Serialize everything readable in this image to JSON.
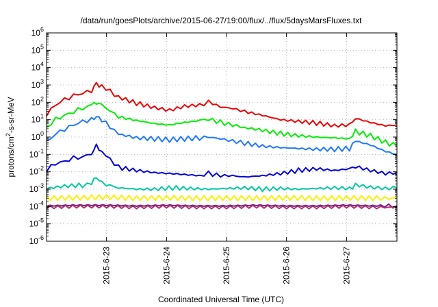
{
  "chart_data": {
    "type": "line",
    "title": "/data/run/goesPlots/archive/2015-06-27/19:00/flux/../flux/5daysMarsFluxes.txt",
    "xlabel": "Coordinated Universal Time (UTC)",
    "ylabel_prefix": "protons/cm",
    "ylabel_sup": "2",
    "ylabel_suffix": "-s-sr-MeV",
    "yscale": "log",
    "ylim_exponents": [
      -6,
      6
    ],
    "y_tick_labels": [
      {
        "base": "10",
        "exp": "6"
      },
      {
        "base": "10",
        "exp": "5"
      },
      {
        "base": "10",
        "exp": "4"
      },
      {
        "base": "10",
        "exp": "3"
      },
      {
        "base": "10",
        "exp": "2"
      },
      {
        "base": "10",
        "exp": "1"
      },
      {
        "base": "10",
        "exp": "0"
      },
      {
        "base": "10",
        "exp": "-1"
      },
      {
        "base": "10",
        "exp": "-2"
      },
      {
        "base": "10",
        "exp": "-3"
      },
      {
        "base": "10",
        "exp": "-4"
      },
      {
        "base": "10",
        "exp": "-5"
      },
      {
        "base": "10",
        "exp": "-6"
      }
    ],
    "xlim_days": [
      22.0,
      27.84
    ],
    "x_ticks": [
      {
        "label": "2015-6-23",
        "day": 23
      },
      {
        "label": "2015-6-24",
        "day": 24
      },
      {
        "label": "2015-6-25",
        "day": 25
      },
      {
        "label": "2015-6-26",
        "day": 26
      },
      {
        "label": "2015-6-27",
        "day": 27
      }
    ],
    "grid": true,
    "series": [
      {
        "color": "#ee0000",
        "x": [
          22.0,
          22.15,
          22.3,
          22.45,
          22.6,
          22.75,
          22.83,
          22.92,
          23.2,
          23.5,
          23.8,
          24.05,
          24.3,
          24.55,
          24.7,
          24.9,
          25.1,
          25.3,
          25.6,
          25.9,
          26.2,
          26.5,
          26.8,
          27.05,
          27.15,
          27.4,
          27.65,
          27.84
        ],
        "y": [
          22,
          70,
          150,
          250,
          330,
          500,
          1200,
          900,
          200,
          90,
          50,
          35,
          60,
          70,
          110,
          55,
          45,
          30,
          18,
          10,
          8,
          6.5,
          4.5,
          5,
          12,
          7,
          4.5,
          5
        ]
      },
      {
        "color": "#00ee00",
        "x": [
          22.0,
          22.15,
          22.3,
          22.45,
          22.6,
          22.75,
          22.83,
          22.92,
          23.2,
          23.5,
          23.8,
          24.05,
          24.3,
          24.55,
          24.7,
          24.9,
          25.1,
          25.3,
          25.6,
          25.9,
          26.2,
          26.5,
          26.8,
          27.05,
          27.15,
          27.4,
          27.65,
          27.84
        ],
        "y": [
          3.5,
          10,
          18,
          28,
          45,
          70,
          100,
          70,
          15,
          9,
          6,
          5,
          7,
          9,
          11,
          7,
          5,
          3.5,
          2.5,
          1.6,
          1.2,
          1,
          0.9,
          0.8,
          2.1,
          1.2,
          0.5,
          0.3
        ]
      },
      {
        "color": "#1e78ff",
        "x": [
          22.0,
          22.15,
          22.3,
          22.45,
          22.6,
          22.75,
          22.83,
          22.92,
          23.2,
          23.5,
          23.8,
          24.05,
          24.3,
          24.55,
          24.7,
          24.9,
          25.1,
          25.3,
          25.6,
          25.9,
          26.2,
          26.5,
          26.8,
          27.05,
          27.15,
          27.4,
          27.65,
          27.84
        ],
        "y": [
          0.5,
          1.5,
          3,
          5,
          8,
          11,
          15,
          10,
          1.5,
          0.9,
          0.8,
          0.7,
          0.8,
          0.9,
          1,
          0.8,
          0.6,
          0.45,
          0.3,
          0.25,
          0.22,
          0.2,
          0.2,
          0.22,
          0.6,
          0.35,
          0.15,
          0.1
        ]
      },
      {
        "color": "#0000dd",
        "x": [
          22.0,
          22.15,
          22.3,
          22.45,
          22.6,
          22.75,
          22.83,
          22.92,
          23.2,
          23.5,
          23.8,
          24.05,
          24.3,
          24.55,
          24.7,
          24.9,
          25.1,
          25.3,
          25.6,
          25.9,
          26.2,
          26.5,
          26.8,
          27.05,
          27.15,
          27.4,
          27.65,
          27.84
        ],
        "y": [
          0.012,
          0.03,
          0.04,
          0.06,
          0.07,
          0.12,
          0.3,
          0.15,
          0.018,
          0.012,
          0.009,
          0.008,
          0.007,
          0.006,
          0.008,
          0.006,
          0.006,
          0.005,
          0.006,
          0.008,
          0.012,
          0.015,
          0.012,
          0.015,
          0.02,
          0.012,
          0.008,
          0.009
        ]
      },
      {
        "color": "#00c8a0",
        "x": [
          22.0,
          22.3,
          22.6,
          22.75,
          22.83,
          22.92,
          23.2,
          23.5,
          23.8,
          24.1,
          24.4,
          24.7,
          25.0,
          25.3,
          25.6,
          25.9,
          26.2,
          26.5,
          26.8,
          27.05,
          27.15,
          27.4,
          27.65,
          27.84
        ],
        "y": [
          0.0011,
          0.0015,
          0.0017,
          0.002,
          0.005,
          0.0022,
          0.0012,
          0.001,
          0.001,
          0.0012,
          0.0011,
          0.001,
          0.0011,
          0.0012,
          0.001,
          0.0011,
          0.001,
          0.0011,
          0.0012,
          0.0011,
          0.0018,
          0.0013,
          0.0011,
          0.0012
        ]
      },
      {
        "color": "#ffee00",
        "x": [
          22.0,
          22.5,
          23.0,
          23.5,
          24.0,
          24.5,
          25.0,
          25.5,
          26.0,
          26.5,
          27.0,
          27.5,
          27.84
        ],
        "y": [
          0.0003,
          0.00032,
          0.00035,
          0.0003,
          0.00032,
          0.0003,
          0.00031,
          0.0003,
          0.00032,
          0.0003,
          0.00031,
          0.0003,
          0.0003
        ]
      },
      {
        "color": "#7a1aa0",
        "x": [
          22.0,
          22.5,
          23.0,
          23.5,
          24.0,
          24.5,
          25.0,
          25.5,
          26.0,
          26.5,
          27.0,
          27.5,
          27.84
        ],
        "y": [
          0.00011,
          0.00012,
          0.00012,
          0.00011,
          0.00012,
          0.00011,
          0.00011,
          0.00012,
          0.00011,
          0.00011,
          0.00012,
          0.00011,
          0.00011
        ]
      },
      {
        "color": "#b03060",
        "x": [
          22.0,
          22.5,
          23.0,
          23.5,
          24.0,
          24.5,
          25.0,
          25.5,
          26.0,
          26.5,
          27.0,
          27.5,
          27.84
        ],
        "y": [
          9e-05,
          0.0001,
          0.0001,
          9e-05,
          0.0001,
          9e-05,
          9e-05,
          0.0001,
          9e-05,
          9e-05,
          0.0001,
          9e-05,
          9e-05
        ]
      }
    ]
  }
}
